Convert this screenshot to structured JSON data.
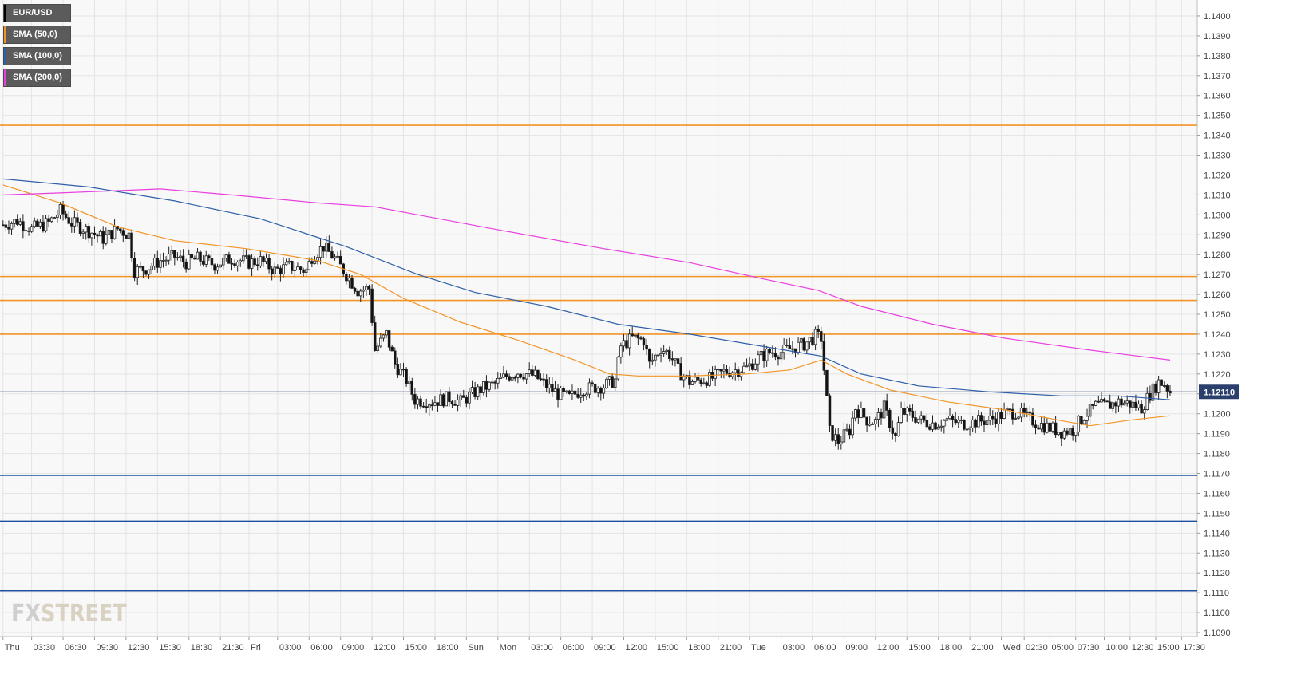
{
  "chart_data": {
    "type": "candlestick",
    "symbol": "EUR/USD",
    "y_axis": {
      "ylim": [
        1.1088,
        1.1408
      ],
      "ticks": [
        "1.1400",
        "1.1390",
        "1.1380",
        "1.1370",
        "1.1360",
        "1.1350",
        "1.1340",
        "1.1330",
        "1.1320",
        "1.1310",
        "1.1300",
        "1.1290",
        "1.1280",
        "1.1270",
        "1.1260",
        "1.1250",
        "1.1240",
        "1.1230",
        "1.1220",
        "1.1210",
        "1.1200",
        "1.1190",
        "1.1180",
        "1.1170",
        "1.1160",
        "1.1150",
        "1.1140",
        "1.1130",
        "1.1120",
        "1.1110",
        "1.1100",
        "1.1090"
      ],
      "position": "right"
    },
    "x_axis": {
      "ticks": [
        {
          "label": "Thu",
          "bar": 0
        },
        {
          "label": "03:30",
          "bar": 10
        },
        {
          "label": "06:30",
          "bar": 21
        },
        {
          "label": "09:30",
          "bar": 32
        },
        {
          "label": "12:30",
          "bar": 43
        },
        {
          "label": "15:30",
          "bar": 54
        },
        {
          "label": "18:30",
          "bar": 65
        },
        {
          "label": "21:30",
          "bar": 76
        },
        {
          "label": "Fri",
          "bar": 86
        },
        {
          "label": "03:00",
          "bar": 96
        },
        {
          "label": "06:00",
          "bar": 107
        },
        {
          "label": "09:00",
          "bar": 118
        },
        {
          "label": "12:00",
          "bar": 129
        },
        {
          "label": "15:00",
          "bar": 140
        },
        {
          "label": "18:00",
          "bar": 151
        },
        {
          "label": "Sun",
          "bar": 162
        },
        {
          "label": "Mon",
          "bar": 173
        },
        {
          "label": "03:00",
          "bar": 184
        },
        {
          "label": "06:00",
          "bar": 195
        },
        {
          "label": "09:00",
          "bar": 206
        },
        {
          "label": "12:00",
          "bar": 217
        },
        {
          "label": "15:00",
          "bar": 228
        },
        {
          "label": "18:00",
          "bar": 239
        },
        {
          "label": "21:00",
          "bar": 250
        },
        {
          "label": "Tue",
          "bar": 261
        },
        {
          "label": "03:00",
          "bar": 272
        },
        {
          "label": "06:00",
          "bar": 283
        },
        {
          "label": "09:00",
          "bar": 294
        },
        {
          "label": "12:00",
          "bar": 305
        },
        {
          "label": "15:00",
          "bar": 316
        },
        {
          "label": "18:00",
          "bar": 327
        },
        {
          "label": "21:00",
          "bar": 338
        },
        {
          "label": "Wed",
          "bar": 349
        },
        {
          "label": "02:30",
          "bar": 357
        },
        {
          "label": "05:00",
          "bar": 366
        },
        {
          "label": "07:30",
          "bar": 375
        },
        {
          "label": "10:00",
          "bar": 385
        },
        {
          "label": "12:30",
          "bar": 394
        },
        {
          "label": "15:00",
          "bar": 403
        },
        {
          "label": "17:30",
          "bar": 412
        }
      ],
      "bar_count": 418
    },
    "grid": true,
    "anchors": [
      [
        0,
        1.1295
      ],
      [
        5,
        1.1297
      ],
      [
        10,
        1.1293
      ],
      [
        16,
        1.1296
      ],
      [
        20,
        1.1302
      ],
      [
        24,
        1.1296
      ],
      [
        30,
        1.1292
      ],
      [
        35,
        1.1288
      ],
      [
        40,
        1.1293
      ],
      [
        44,
        1.129
      ],
      [
        46,
        1.1272
      ],
      [
        50,
        1.1273
      ],
      [
        55,
        1.1277
      ],
      [
        60,
        1.1279
      ],
      [
        64,
        1.1276
      ],
      [
        68,
        1.1278
      ],
      [
        74,
        1.1275
      ],
      [
        80,
        1.1278
      ],
      [
        86,
        1.1276
      ],
      [
        90,
        1.1277
      ],
      [
        95,
        1.1272
      ],
      [
        100,
        1.1274
      ],
      [
        106,
        1.1272
      ],
      [
        108,
        1.1279
      ],
      [
        112,
        1.1284
      ],
      [
        116,
        1.1278
      ],
      [
        120,
        1.127
      ],
      [
        124,
        1.1262
      ],
      [
        128,
        1.1263
      ],
      [
        130,
        1.1232
      ],
      [
        134,
        1.124
      ],
      [
        137,
        1.1225
      ],
      [
        141,
        1.1217
      ],
      [
        144,
        1.1207
      ],
      [
        150,
        1.1206
      ],
      [
        156,
        1.1208
      ],
      [
        160,
        1.1206
      ],
      [
        164,
        1.121
      ],
      [
        168,
        1.1213
      ],
      [
        172,
        1.1215
      ],
      [
        176,
        1.1219
      ],
      [
        180,
        1.1221
      ],
      [
        186,
        1.1219
      ],
      [
        190,
        1.1214
      ],
      [
        194,
        1.121
      ],
      [
        198,
        1.1208
      ],
      [
        202,
        1.1212
      ],
      [
        206,
        1.1213
      ],
      [
        210,
        1.1214
      ],
      [
        214,
        1.1217
      ],
      [
        216,
        1.1234
      ],
      [
        220,
        1.1238
      ],
      [
        224,
        1.1237
      ],
      [
        226,
        1.1225
      ],
      [
        230,
        1.1233
      ],
      [
        233,
        1.123
      ],
      [
        236,
        1.1222
      ],
      [
        240,
        1.1216
      ],
      [
        244,
        1.1217
      ],
      [
        248,
        1.1218
      ],
      [
        252,
        1.1221
      ],
      [
        256,
        1.1222
      ],
      [
        260,
        1.1223
      ],
      [
        264,
        1.1228
      ],
      [
        268,
        1.1231
      ],
      [
        272,
        1.1231
      ],
      [
        276,
        1.1233
      ],
      [
        280,
        1.1235
      ],
      [
        284,
        1.1239
      ],
      [
        286,
        1.1238
      ],
      [
        289,
        1.1191
      ],
      [
        292,
        1.1186
      ],
      [
        296,
        1.1192
      ],
      [
        298,
        1.1203
      ],
      [
        302,
        1.1197
      ],
      [
        305,
        1.1196
      ],
      [
        308,
        1.1203
      ],
      [
        312,
        1.1188
      ],
      [
        314,
        1.1201
      ],
      [
        318,
        1.1199
      ],
      [
        322,
        1.1196
      ],
      [
        326,
        1.1195
      ],
      [
        330,
        1.1197
      ],
      [
        335,
        1.1195
      ],
      [
        340,
        1.1196
      ],
      [
        345,
        1.1197
      ],
      [
        350,
        1.12
      ],
      [
        354,
        1.1201
      ],
      [
        358,
        1.1198
      ],
      [
        362,
        1.1195
      ],
      [
        366,
        1.1193
      ],
      [
        370,
        1.1191
      ],
      [
        374,
        1.1192
      ],
      [
        378,
        1.1199
      ],
      [
        382,
        1.1204
      ],
      [
        386,
        1.1204
      ],
      [
        390,
        1.1206
      ],
      [
        394,
        1.1205
      ],
      [
        398,
        1.1203
      ],
      [
        401,
        1.121
      ],
      [
        404,
        1.1216
      ],
      [
        406,
        1.1215
      ],
      [
        408,
        1.1211
      ]
    ],
    "sma": [
      {
        "name": "SMA (50,0)",
        "color": "#f29425",
        "points": [
          [
            0,
            1.1315
          ],
          [
            20,
            1.1306
          ],
          [
            40,
            1.1294
          ],
          [
            60,
            1.1287
          ],
          [
            85,
            1.1283
          ],
          [
            110,
            1.1277
          ],
          [
            125,
            1.127
          ],
          [
            140,
            1.1258
          ],
          [
            160,
            1.1246
          ],
          [
            180,
            1.1237
          ],
          [
            200,
            1.1227
          ],
          [
            212,
            1.122
          ],
          [
            222,
            1.1219
          ],
          [
            240,
            1.1219
          ],
          [
            260,
            1.122
          ],
          [
            275,
            1.1222
          ],
          [
            286,
            1.1227
          ],
          [
            295,
            1.122
          ],
          [
            310,
            1.1212
          ],
          [
            330,
            1.1206
          ],
          [
            350,
            1.1202
          ],
          [
            372,
            1.1196
          ],
          [
            380,
            1.1194
          ],
          [
            395,
            1.1197
          ],
          [
            408,
            1.1199
          ]
        ]
      },
      {
        "name": "SMA (100,0)",
        "color": "#2e5fa8",
        "points": [
          [
            0,
            1.1318
          ],
          [
            30,
            1.1314
          ],
          [
            60,
            1.1307
          ],
          [
            90,
            1.1298
          ],
          [
            120,
            1.1284
          ],
          [
            145,
            1.127
          ],
          [
            165,
            1.1261
          ],
          [
            190,
            1.1254
          ],
          [
            215,
            1.1245
          ],
          [
            240,
            1.124
          ],
          [
            265,
            1.1234
          ],
          [
            286,
            1.1229
          ],
          [
            300,
            1.122
          ],
          [
            320,
            1.1214
          ],
          [
            345,
            1.1211
          ],
          [
            370,
            1.1209
          ],
          [
            390,
            1.1209
          ],
          [
            408,
            1.1207
          ]
        ]
      },
      {
        "name": "SMA (200,0)",
        "color": "#e83fe0",
        "points": [
          [
            0,
            1.131
          ],
          [
            20,
            1.1311
          ],
          [
            55,
            1.1313
          ],
          [
            80,
            1.131
          ],
          [
            110,
            1.1306
          ],
          [
            130,
            1.1304
          ],
          [
            145,
            1.13
          ],
          [
            175,
            1.1292
          ],
          [
            210,
            1.1283
          ],
          [
            240,
            1.1276
          ],
          [
            265,
            1.1268
          ],
          [
            285,
            1.1262
          ],
          [
            300,
            1.1254
          ],
          [
            325,
            1.1245
          ],
          [
            350,
            1.1238
          ],
          [
            380,
            1.1232
          ],
          [
            408,
            1.1227
          ]
        ]
      }
    ],
    "horizontal_lines": [
      {
        "value": 1.1345,
        "color": "#f29425"
      },
      {
        "value": 1.1269,
        "color": "#f29425"
      },
      {
        "value": 1.1257,
        "color": "#f29425"
      },
      {
        "value": 1.124,
        "color": "#f29425"
      },
      {
        "value": 1.1169,
        "color": "#1f4fa0"
      },
      {
        "value": 1.1146,
        "color": "#1f4fa0"
      },
      {
        "value": 1.1111,
        "color": "#1f4fa0"
      }
    ],
    "current_price": {
      "value": 1.1211,
      "label": "1.12110",
      "color": "#2a3f6b"
    },
    "legend": [
      {
        "label": "EUR/USD",
        "color": "#000000"
      },
      {
        "label": "SMA (50,0)",
        "color": "#f29425"
      },
      {
        "label": "SMA (100,0)",
        "color": "#2e5fa8"
      },
      {
        "label": "SMA (200,0)",
        "color": "#e83fe0"
      }
    ],
    "legend_position": "top-left"
  },
  "branding": {
    "fx": "FX",
    "street": "STREET"
  }
}
